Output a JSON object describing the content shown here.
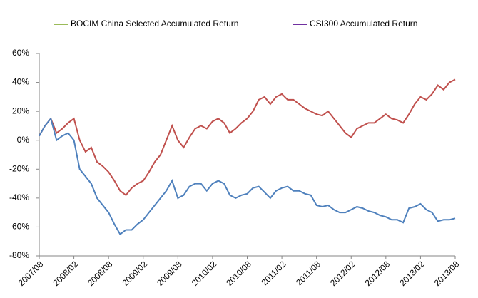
{
  "chart_data": {
    "type": "line",
    "categories": [
      "2007/08",
      null,
      null,
      null,
      null,
      null,
      "2008/02",
      null,
      null,
      null,
      null,
      null,
      "2008/08",
      null,
      null,
      null,
      null,
      null,
      "2009/02",
      null,
      null,
      null,
      null,
      null,
      "2009/08",
      null,
      null,
      null,
      null,
      null,
      "2010/02",
      null,
      null,
      null,
      null,
      null,
      "2010/08",
      null,
      null,
      null,
      null,
      null,
      "2011/02",
      null,
      null,
      null,
      null,
      null,
      "2011/08",
      null,
      null,
      null,
      null,
      null,
      "2012/02",
      null,
      null,
      null,
      null,
      null,
      "2012/08",
      null,
      null,
      null,
      null,
      null,
      "2013/02",
      null,
      null,
      null,
      null,
      null,
      "2013/08"
    ],
    "series": [
      {
        "name": "BOCIM China Selected Accumulated Return",
        "color": "#c0504d",
        "legend_color": "#9bbb59",
        "values": [
          3,
          10,
          15,
          5,
          8,
          12,
          15,
          0,
          -8,
          -5,
          -15,
          -18,
          -22,
          -28,
          -35,
          -38,
          -33,
          -30,
          -28,
          -22,
          -15,
          -10,
          0,
          10,
          0,
          -5,
          2,
          8,
          10,
          8,
          13,
          15,
          12,
          5,
          8,
          12,
          15,
          20,
          28,
          30,
          25,
          30,
          32,
          28,
          28,
          25,
          22,
          20,
          18,
          17,
          20,
          15,
          10,
          5,
          2,
          8,
          10,
          12,
          12,
          15,
          18,
          15,
          14,
          12,
          18,
          25,
          30,
          28,
          32,
          38,
          35,
          40,
          42
        ]
      },
      {
        "name": "CSI300 Accumulated Return",
        "color": "#4f81bd",
        "legend_color": "#7030a0",
        "values": [
          3,
          10,
          15,
          0,
          3,
          5,
          0,
          -20,
          -25,
          -30,
          -40,
          -45,
          -50,
          -58,
          -65,
          -62,
          -62,
          -58,
          -55,
          -50,
          -45,
          -40,
          -35,
          -28,
          -40,
          -38,
          -32,
          -30,
          -30,
          -35,
          -30,
          -28,
          -30,
          -38,
          -40,
          -38,
          -37,
          -33,
          -32,
          -36,
          -40,
          -35,
          -33,
          -32,
          -35,
          -35,
          -37,
          -38,
          -45,
          -46,
          -45,
          -48,
          -50,
          -50,
          -48,
          -46,
          -47,
          -49,
          -50,
          -52,
          -53,
          -55,
          -55,
          -57,
          -47,
          -46,
          -44,
          -48,
          -50,
          -56,
          -55,
          -55,
          -54
        ]
      }
    ],
    "ylim": [
      -80,
      60
    ],
    "yticks": [
      {
        "value": -80,
        "label": "-80%"
      },
      {
        "value": -60,
        "label": "-60%"
      },
      {
        "value": -40,
        "label": "-40%"
      },
      {
        "value": -20,
        "label": "-20%"
      },
      {
        "value": 0,
        "label": "0%"
      },
      {
        "value": 20,
        "label": "20%"
      },
      {
        "value": 40,
        "label": "40%"
      },
      {
        "value": 60,
        "label": "60%"
      }
    ],
    "grid": false
  }
}
